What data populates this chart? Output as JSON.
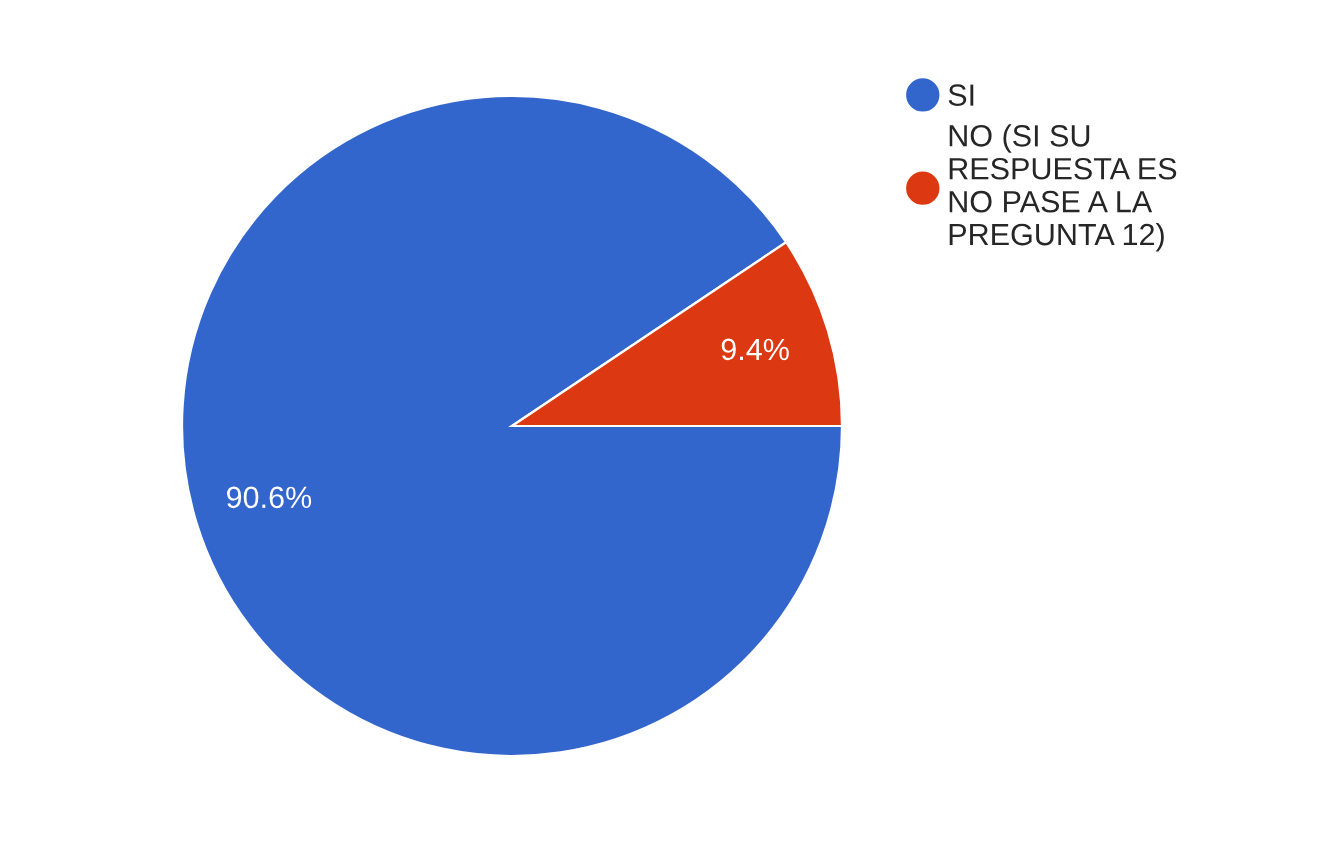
{
  "chart_data": {
    "type": "pie",
    "categories": [
      "SI",
      "NO (SI SU RESPUESTA ES NO PASE A LA PREGUNTA 12)"
    ],
    "values": [
      90.6,
      9.4
    ],
    "colors": [
      "#3366cc",
      "#dc3912"
    ],
    "value_labels": [
      "90.6%",
      "9.4%"
    ],
    "legend": "right"
  }
}
